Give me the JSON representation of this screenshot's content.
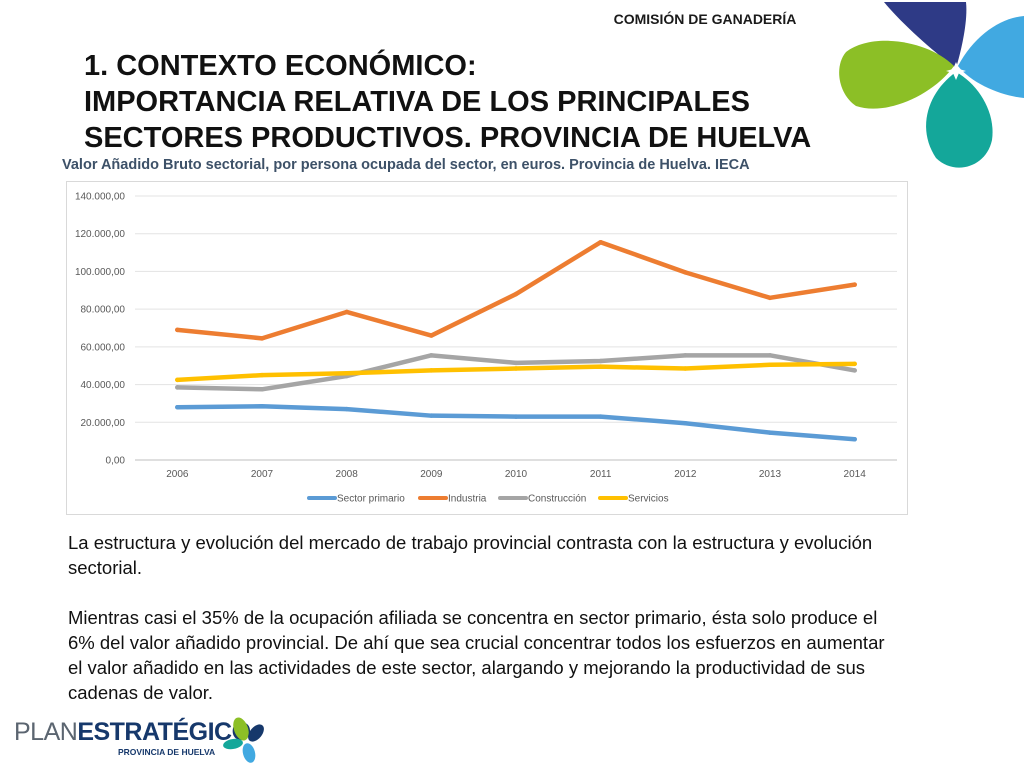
{
  "header": {
    "commission": "COMISIÓN DE GANADERÍA",
    "title_lines": [
      "1. CONTEXTO ECONÓMICO:",
      "IMPORTANCIA RELATIVA DE LOS PRINCIPALES",
      "SECTORES PRODUCTIVOS. PROVINCIA DE HUELVA"
    ]
  },
  "chart_caption": "Valor Añadido Bruto sectorial, por persona ocupada del sector, en euros. Provincia de Huelva. IECA",
  "chart_data": {
    "type": "line",
    "title": "",
    "xlabel": "",
    "ylabel": "",
    "categories": [
      "2006",
      "2007",
      "2008",
      "2009",
      "2010",
      "2011",
      "2012",
      "2013",
      "2014"
    ],
    "ylim": [
      0,
      140000
    ],
    "ytick_values": [
      0,
      20000,
      40000,
      60000,
      80000,
      100000,
      120000,
      140000
    ],
    "ytick_labels": [
      "0,00",
      "20.000,00",
      "40.000,00",
      "60.000,00",
      "80.000,00",
      "100.000,00",
      "120.000,00",
      "140.000,00"
    ],
    "grid": true,
    "legend_position": "bottom",
    "series": [
      {
        "name": "Sector primario",
        "color": "#5b9bd5",
        "values": [
          28000,
          28500,
          27000,
          23500,
          23000,
          23000,
          19500,
          14500,
          11000
        ]
      },
      {
        "name": "Industria",
        "color": "#ed7d31",
        "values": [
          69000,
          64500,
          78500,
          66000,
          88000,
          115500,
          99500,
          86000,
          93000
        ]
      },
      {
        "name": "Construcción",
        "color": "#a5a5a5",
        "values": [
          38500,
          37500,
          44500,
          55500,
          51500,
          52500,
          55500,
          55500,
          47500
        ]
      },
      {
        "name": "Servicios",
        "color": "#ffc000",
        "values": [
          42500,
          45000,
          46000,
          47500,
          48500,
          49500,
          48500,
          50500,
          51000
        ]
      }
    ]
  },
  "body": {
    "paragraph_1": "La estructura y evolución del mercado de trabajo provincial contrasta con la estructura y evolución sectorial.",
    "paragraph_2": "Mientras casi el 35% de la ocupación afiliada se concentra en sector primario, ésta solo produce el 6% del valor añadido provincial. De ahí que sea crucial concentrar todos los esfuerzos en aumentar el valor añadido en las actividades de este sector, alargando y mejorando la productividad de sus cadenas de valor."
  },
  "footer_logo": {
    "word_plan": "PLAN",
    "word_estrategico": "ESTRATÉGICO",
    "subtitle": "PROVINCIA DE HUELVA"
  },
  "colors": {
    "navy": "#2e3a86",
    "green": "#8cbf26",
    "sky": "#41a9e1",
    "teal": "#14a79a",
    "caption": "#3d5168",
    "plan_blue": "#16386b"
  }
}
